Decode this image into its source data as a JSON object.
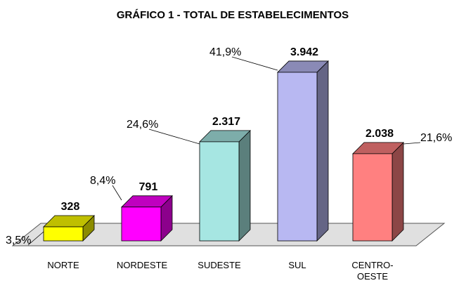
{
  "chart_data": {
    "type": "bar3d",
    "title": "GRÁFICO 1 - TOTAL DE ESTABELECIMENTOS",
    "categories": [
      "NORTE",
      "NORDESTE",
      "SUDESTE",
      "SUL",
      "CENTRO-OESTE"
    ],
    "values": [
      328,
      791,
      2317,
      3942,
      2038
    ],
    "value_labels": [
      "328",
      "791",
      "2.317",
      "3.942",
      "2.038"
    ],
    "percentages": [
      3.5,
      8.4,
      24.6,
      41.9,
      21.6
    ],
    "percentage_labels": [
      "3,5%",
      "8,4%",
      "24,6%",
      "41,9%",
      "21,6%"
    ],
    "colors": [
      "#ffff00",
      "#ff00ff",
      "#a6e6e2",
      "#b8b8f2",
      "#ff8080"
    ]
  }
}
